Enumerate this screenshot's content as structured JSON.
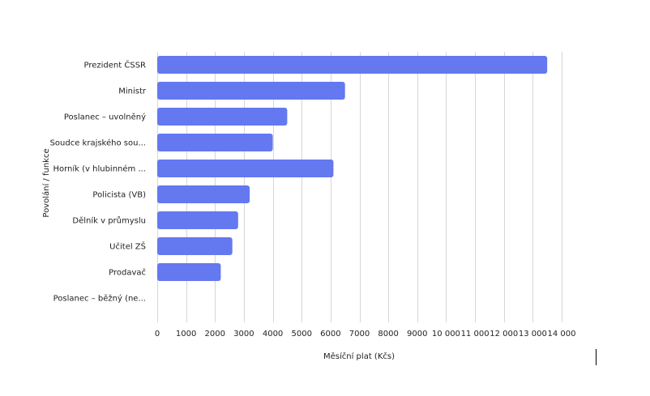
{
  "chart_data": {
    "type": "bar",
    "orientation": "horizontal",
    "title": "",
    "xlabel": "Měsíční plat (Kčs)",
    "ylabel": "Povolání / funkce",
    "categories": [
      "Prezident ČSSR",
      "Ministr",
      "Poslanec – uvolněný",
      "Soudce krajského sou...",
      "Horník (v hlubinném ...",
      "Policista (VB)",
      "Dělník v průmyslu",
      "Učitel ZŠ",
      "Prodavač",
      "Poslanec – běžný (ne..."
    ],
    "values": [
      13500,
      6500,
      4500,
      4000,
      6100,
      3200,
      2800,
      2600,
      2200,
      0
    ],
    "xlim": [
      0,
      14000
    ],
    "xticks": [
      0,
      1000,
      2000,
      3000,
      4000,
      5000,
      6000,
      7000,
      8000,
      9000,
      10000,
      11000,
      12000,
      13000,
      14000
    ],
    "xtick_labels": [
      "0",
      "1000",
      "2000",
      "3000",
      "4000",
      "5000",
      "6000",
      "7000",
      "8000",
      "9000",
      "10 000",
      "11 000",
      "12 000",
      "13 000",
      "14 000"
    ],
    "grid": true,
    "legend": "none",
    "bar_color": "#6478ef"
  }
}
